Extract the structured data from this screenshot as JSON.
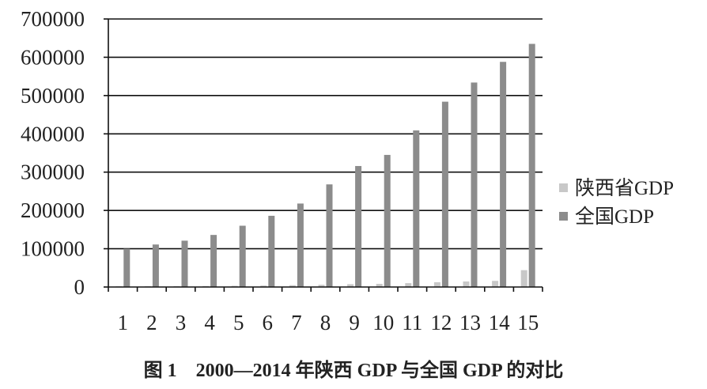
{
  "caption": "图 1　2000—2014 年陕西 GDP 与全国 GDP 的对比",
  "chart_data": {
    "type": "bar",
    "title": "",
    "xlabel": "",
    "ylabel": "",
    "ylim": [
      0,
      700000
    ],
    "yticks": [
      "0",
      "100000",
      "200000",
      "300000",
      "400000",
      "500000",
      "600000",
      "700000"
    ],
    "categories": [
      "1",
      "2",
      "3",
      "4",
      "5",
      "6",
      "7",
      "8",
      "9",
      "10",
      "11",
      "12",
      "13",
      "14",
      "15"
    ],
    "grid": true,
    "legend_position": "right",
    "series": [
      {
        "name": "陕西省GDP",
        "color": "#c8c8c8",
        "values": [
          1800,
          2000,
          2200,
          2600,
          3200,
          3900,
          4700,
          5800,
          7300,
          8200,
          10100,
          12500,
          14400,
          16000,
          44000
        ]
      },
      {
        "name": "全国GDP",
        "color": "#8c8c8c",
        "values": [
          100000,
          111000,
          121000,
          136000,
          160000,
          186000,
          218000,
          268000,
          316000,
          345000,
          409000,
          484000,
          534000,
          588000,
          635000
        ]
      }
    ]
  }
}
